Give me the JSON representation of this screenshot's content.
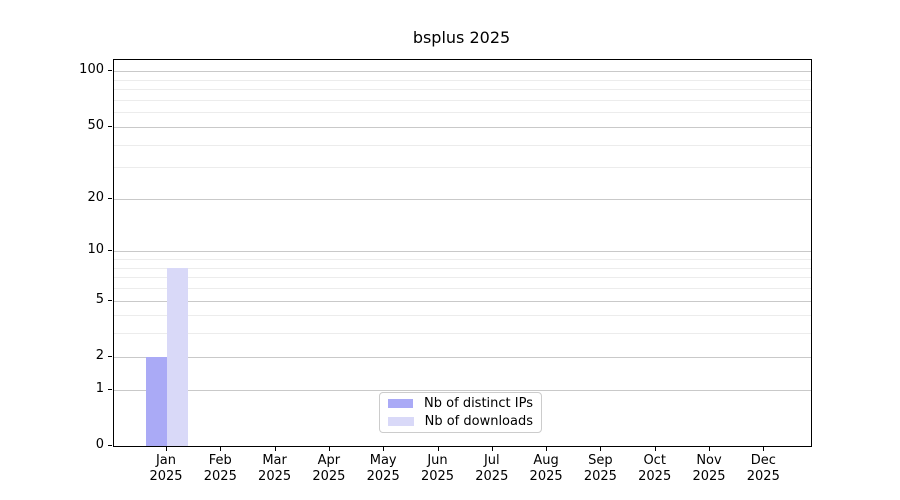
{
  "title": "bsplus 2025",
  "colors": {
    "axis": "#000000",
    "grid_major": "#c9c9c9",
    "grid_minor": "#ececec",
    "background": "#ffffff",
    "bar_distinct_ips": "#aaaaf6",
    "bar_downloads": "#d9d9f8",
    "legend_border": "#cccccc"
  },
  "chart_data": {
    "type": "bar",
    "title": "bsplus 2025",
    "scale": "log1p",
    "grid": "horizontal major+minor",
    "legend_position": "lower center",
    "categories": [
      "Jan",
      "Feb",
      "Mar",
      "Apr",
      "May",
      "Jun",
      "Jul",
      "Aug",
      "Sep",
      "Oct",
      "Nov",
      "Dec"
    ],
    "category_year": "2025",
    "series": [
      {
        "name": "Nb of distinct IPs",
        "color": "#aaaaf6",
        "values": [
          2,
          0,
          0,
          0,
          0,
          0,
          0,
          0,
          0,
          0,
          0,
          0
        ]
      },
      {
        "name": "Nb of downloads",
        "color": "#d9d9f8",
        "values": [
          8,
          0,
          0,
          0,
          0,
          0,
          0,
          0,
          0,
          0,
          0,
          0
        ]
      }
    ],
    "y_major_ticks": [
      0,
      1,
      2,
      5,
      10,
      20,
      50,
      100
    ],
    "y_minor_gridlines": [
      3,
      4,
      6,
      7,
      8,
      9,
      30,
      40,
      60,
      70,
      80,
      90
    ],
    "ylim": [
      0,
      116
    ],
    "xlabel": "",
    "ylabel": ""
  }
}
